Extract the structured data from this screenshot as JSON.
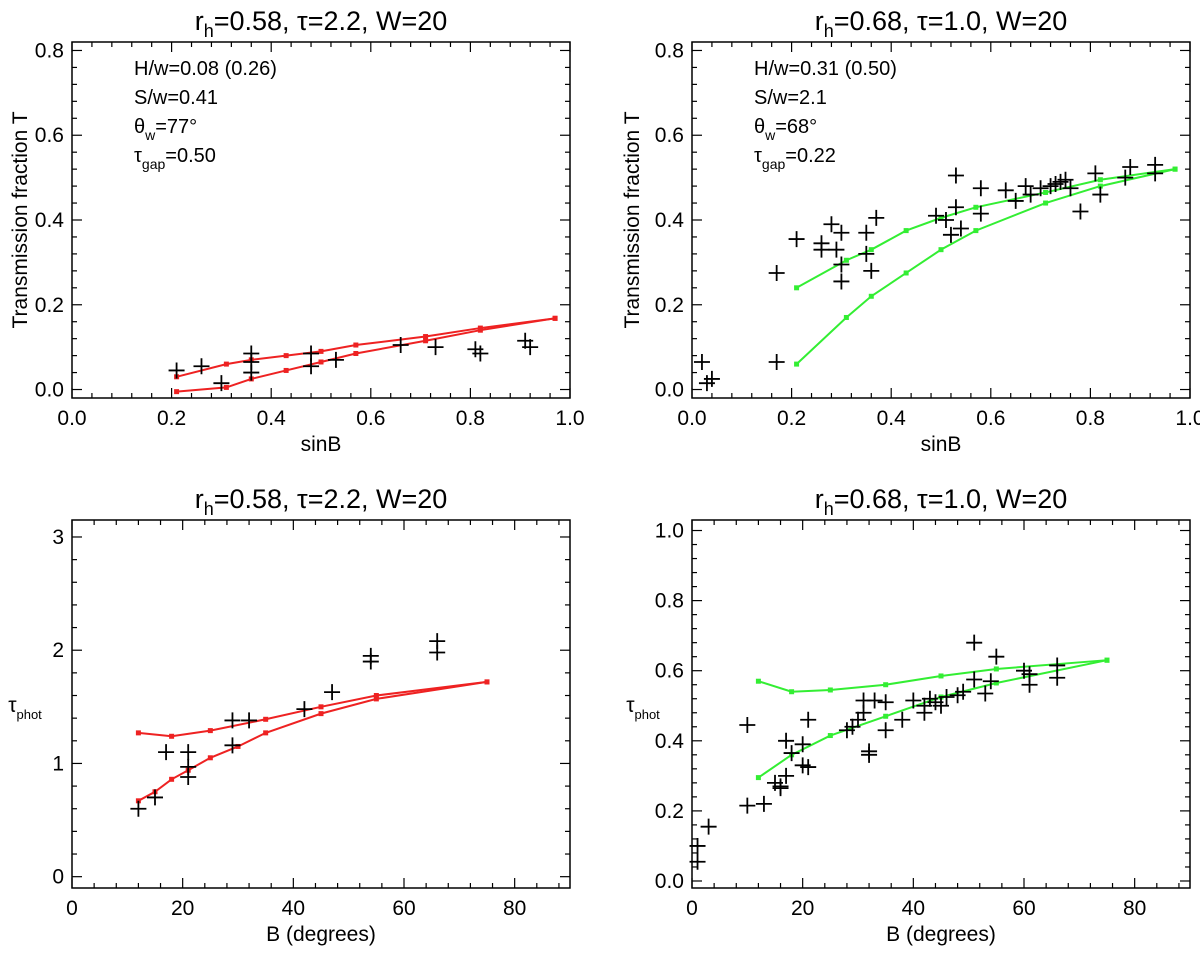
{
  "chart_data": [
    {
      "type": "scatter",
      "title": {
        "main": "r",
        "sub": "h",
        "rest": "=0.58, τ=2.2, W=20"
      },
      "xlabel": "sinB",
      "ylabel": "Transmission fraction T",
      "xlim": [
        0,
        1
      ],
      "ylim": [
        -0.02,
        0.82
      ],
      "xticks": [
        0.0,
        0.2,
        0.4,
        0.6,
        0.8,
        1.0
      ],
      "xtick_labels": [
        "0.0",
        "0.2",
        "0.4",
        "0.6",
        "0.8",
        "1.0"
      ],
      "yticks": [
        0.0,
        0.2,
        0.4,
        0.6,
        0.8
      ],
      "ytick_labels": [
        "0.0",
        "0.2",
        "0.4",
        "0.6",
        "0.8"
      ],
      "annotations": [
        {
          "main": "H/w=0.08  (0.26)"
        },
        {
          "main": "S/w=0.41"
        },
        {
          "main": "θ",
          "sub": "w",
          "rest": "=77°"
        },
        {
          "main": "τ",
          "sub": "gap",
          "rest": "=0.50"
        }
      ],
      "line_color": "#ee2222",
      "series": [
        {
          "name": "upper curve",
          "x": [
            0.21,
            0.31,
            0.36,
            0.43,
            0.5,
            0.57,
            0.71,
            0.82,
            0.97
          ],
          "y": [
            0.03,
            0.06,
            0.07,
            0.08,
            0.09,
            0.105,
            0.125,
            0.145,
            0.168
          ]
        },
        {
          "name": "lower curve",
          "x": [
            0.21,
            0.31,
            0.36,
            0.43,
            0.5,
            0.57,
            0.71,
            0.82,
            0.97
          ],
          "y": [
            -0.005,
            0.005,
            0.025,
            0.045,
            0.065,
            0.085,
            0.115,
            0.14,
            0.168
          ]
        }
      ],
      "points": {
        "x": [
          0.21,
          0.26,
          0.3,
          0.36,
          0.36,
          0.36,
          0.48,
          0.48,
          0.53,
          0.66,
          0.73,
          0.81,
          0.82,
          0.91,
          0.92
        ],
        "y": [
          0.045,
          0.055,
          0.015,
          0.085,
          0.065,
          0.04,
          0.085,
          0.055,
          0.07,
          0.105,
          0.1,
          0.095,
          0.085,
          0.115,
          0.1
        ]
      }
    },
    {
      "type": "scatter",
      "title": {
        "main": "r",
        "sub": "h",
        "rest": "=0.68, τ=1.0, W=20"
      },
      "xlabel": "sinB",
      "ylabel": "Transmission fraction T",
      "xlim": [
        0,
        1
      ],
      "ylim": [
        -0.02,
        0.82
      ],
      "xticks": [
        0.0,
        0.2,
        0.4,
        0.6,
        0.8,
        1.0
      ],
      "xtick_labels": [
        "0.0",
        "0.2",
        "0.4",
        "0.6",
        "0.8",
        "1.0"
      ],
      "yticks": [
        0.0,
        0.2,
        0.4,
        0.6,
        0.8
      ],
      "ytick_labels": [
        "0.0",
        "0.2",
        "0.4",
        "0.6",
        "0.8"
      ],
      "annotations": [
        {
          "main": "H/w=0.31  (0.50)"
        },
        {
          "main": "S/w=2.1"
        },
        {
          "main": "θ",
          "sub": "w",
          "rest": "=68°"
        },
        {
          "main": "τ",
          "sub": "gap",
          "rest": "=0.22"
        }
      ],
      "line_color": "#33ee33",
      "series": [
        {
          "name": "upper curve",
          "x": [
            0.21,
            0.31,
            0.36,
            0.43,
            0.5,
            0.57,
            0.71,
            0.82,
            0.97
          ],
          "y": [
            0.24,
            0.305,
            0.33,
            0.375,
            0.405,
            0.43,
            0.465,
            0.495,
            0.52
          ]
        },
        {
          "name": "lower curve",
          "x": [
            0.21,
            0.31,
            0.36,
            0.43,
            0.5,
            0.57,
            0.71,
            0.82,
            0.97
          ],
          "y": [
            0.06,
            0.17,
            0.22,
            0.275,
            0.33,
            0.375,
            0.44,
            0.48,
            0.52
          ]
        }
      ],
      "points": {
        "x": [
          0.02,
          0.03,
          0.04,
          0.17,
          0.17,
          0.21,
          0.26,
          0.26,
          0.28,
          0.29,
          0.3,
          0.3,
          0.3,
          0.35,
          0.35,
          0.36,
          0.37,
          0.49,
          0.51,
          0.52,
          0.53,
          0.53,
          0.54,
          0.58,
          0.58,
          0.63,
          0.65,
          0.67,
          0.68,
          0.7,
          0.72,
          0.73,
          0.74,
          0.75,
          0.76,
          0.78,
          0.81,
          0.82,
          0.87,
          0.88,
          0.93,
          0.93
        ],
        "y": [
          0.065,
          0.015,
          0.025,
          0.275,
          0.065,
          0.355,
          0.345,
          0.33,
          0.39,
          0.33,
          0.295,
          0.255,
          0.37,
          0.37,
          0.32,
          0.28,
          0.405,
          0.41,
          0.4,
          0.365,
          0.505,
          0.43,
          0.38,
          0.475,
          0.415,
          0.47,
          0.445,
          0.48,
          0.46,
          0.475,
          0.48,
          0.485,
          0.49,
          0.495,
          0.475,
          0.42,
          0.51,
          0.46,
          0.5,
          0.525,
          0.53,
          0.51
        ]
      }
    },
    {
      "type": "scatter",
      "title": {
        "main": "r",
        "sub": "h",
        "rest": "=0.58, τ=2.2, W=20"
      },
      "xlabel": "B (degrees)",
      "ylabel": {
        "main": "τ",
        "sub": "phot"
      },
      "xlim": [
        0,
        90
      ],
      "ylim": [
        -0.1,
        3.15
      ],
      "xticks": [
        0,
        20,
        40,
        60,
        80
      ],
      "xtick_labels": [
        "0",
        "20",
        "40",
        "60",
        "80"
      ],
      "yticks": [
        0,
        1,
        2,
        3
      ],
      "ytick_labels": [
        "0",
        "1",
        "2",
        "3"
      ],
      "line_color": "#ee2222",
      "series": [
        {
          "name": "upper curve",
          "x": [
            12,
            18,
            25,
            35,
            45,
            55,
            75
          ],
          "y": [
            1.27,
            1.24,
            1.29,
            1.39,
            1.5,
            1.6,
            1.72
          ]
        },
        {
          "name": "lower curve",
          "x": [
            12,
            15,
            18,
            21,
            25,
            30,
            35,
            45,
            55,
            75
          ],
          "y": [
            0.67,
            0.75,
            0.86,
            0.94,
            1.05,
            1.15,
            1.27,
            1.44,
            1.57,
            1.72
          ]
        }
      ],
      "points": {
        "x": [
          12,
          15,
          17,
          21,
          21,
          21,
          29,
          29,
          32,
          42,
          47,
          54,
          54,
          66,
          66
        ],
        "y": [
          0.6,
          0.7,
          1.1,
          1.1,
          0.97,
          0.88,
          1.38,
          1.16,
          1.38,
          1.48,
          1.63,
          1.95,
          1.9,
          2.08,
          1.98
        ]
      }
    },
    {
      "type": "scatter",
      "title": {
        "main": "r",
        "sub": "h",
        "rest": "=0.68, τ=1.0, W=20"
      },
      "xlabel": "B (degrees)",
      "ylabel": {
        "main": "τ",
        "sub": "phot"
      },
      "xlim": [
        0,
        90
      ],
      "ylim": [
        -0.02,
        1.03
      ],
      "xticks": [
        0,
        20,
        40,
        60,
        80
      ],
      "xtick_labels": [
        "0",
        "20",
        "40",
        "60",
        "80"
      ],
      "yticks": [
        0.0,
        0.2,
        0.4,
        0.6,
        0.8,
        1.0
      ],
      "ytick_labels": [
        "0.0",
        "0.2",
        "0.4",
        "0.6",
        "0.8",
        "1.0"
      ],
      "line_color": "#33ee33",
      "series": [
        {
          "name": "upper curve",
          "x": [
            12,
            18,
            25,
            35,
            45,
            55,
            75
          ],
          "y": [
            0.57,
            0.54,
            0.545,
            0.56,
            0.585,
            0.605,
            0.63
          ]
        },
        {
          "name": "lower curve",
          "x": [
            12,
            18,
            25,
            35,
            45,
            55,
            75
          ],
          "y": [
            0.295,
            0.36,
            0.415,
            0.47,
            0.525,
            0.565,
            0.63
          ]
        }
      ],
      "points": {
        "x": [
          1,
          1,
          3,
          10,
          10,
          13,
          15,
          16,
          16,
          17,
          17,
          18,
          20,
          20,
          21,
          21,
          28,
          29,
          30,
          31,
          31,
          32,
          32,
          33,
          35,
          35,
          38,
          40,
          42,
          42,
          43,
          44,
          45,
          46,
          48,
          49,
          51,
          51,
          53,
          54,
          55,
          60,
          61,
          61,
          66,
          66
        ],
        "y": [
          0.055,
          0.1,
          0.155,
          0.445,
          0.215,
          0.22,
          0.28,
          0.265,
          0.27,
          0.3,
          0.4,
          0.365,
          0.33,
          0.39,
          0.46,
          0.325,
          0.43,
          0.44,
          0.46,
          0.48,
          0.515,
          0.36,
          0.37,
          0.515,
          0.43,
          0.51,
          0.46,
          0.515,
          0.5,
          0.48,
          0.52,
          0.51,
          0.5,
          0.525,
          0.53,
          0.54,
          0.68,
          0.575,
          0.535,
          0.57,
          0.64,
          0.6,
          0.59,
          0.56,
          0.58,
          0.615
        ]
      }
    }
  ]
}
